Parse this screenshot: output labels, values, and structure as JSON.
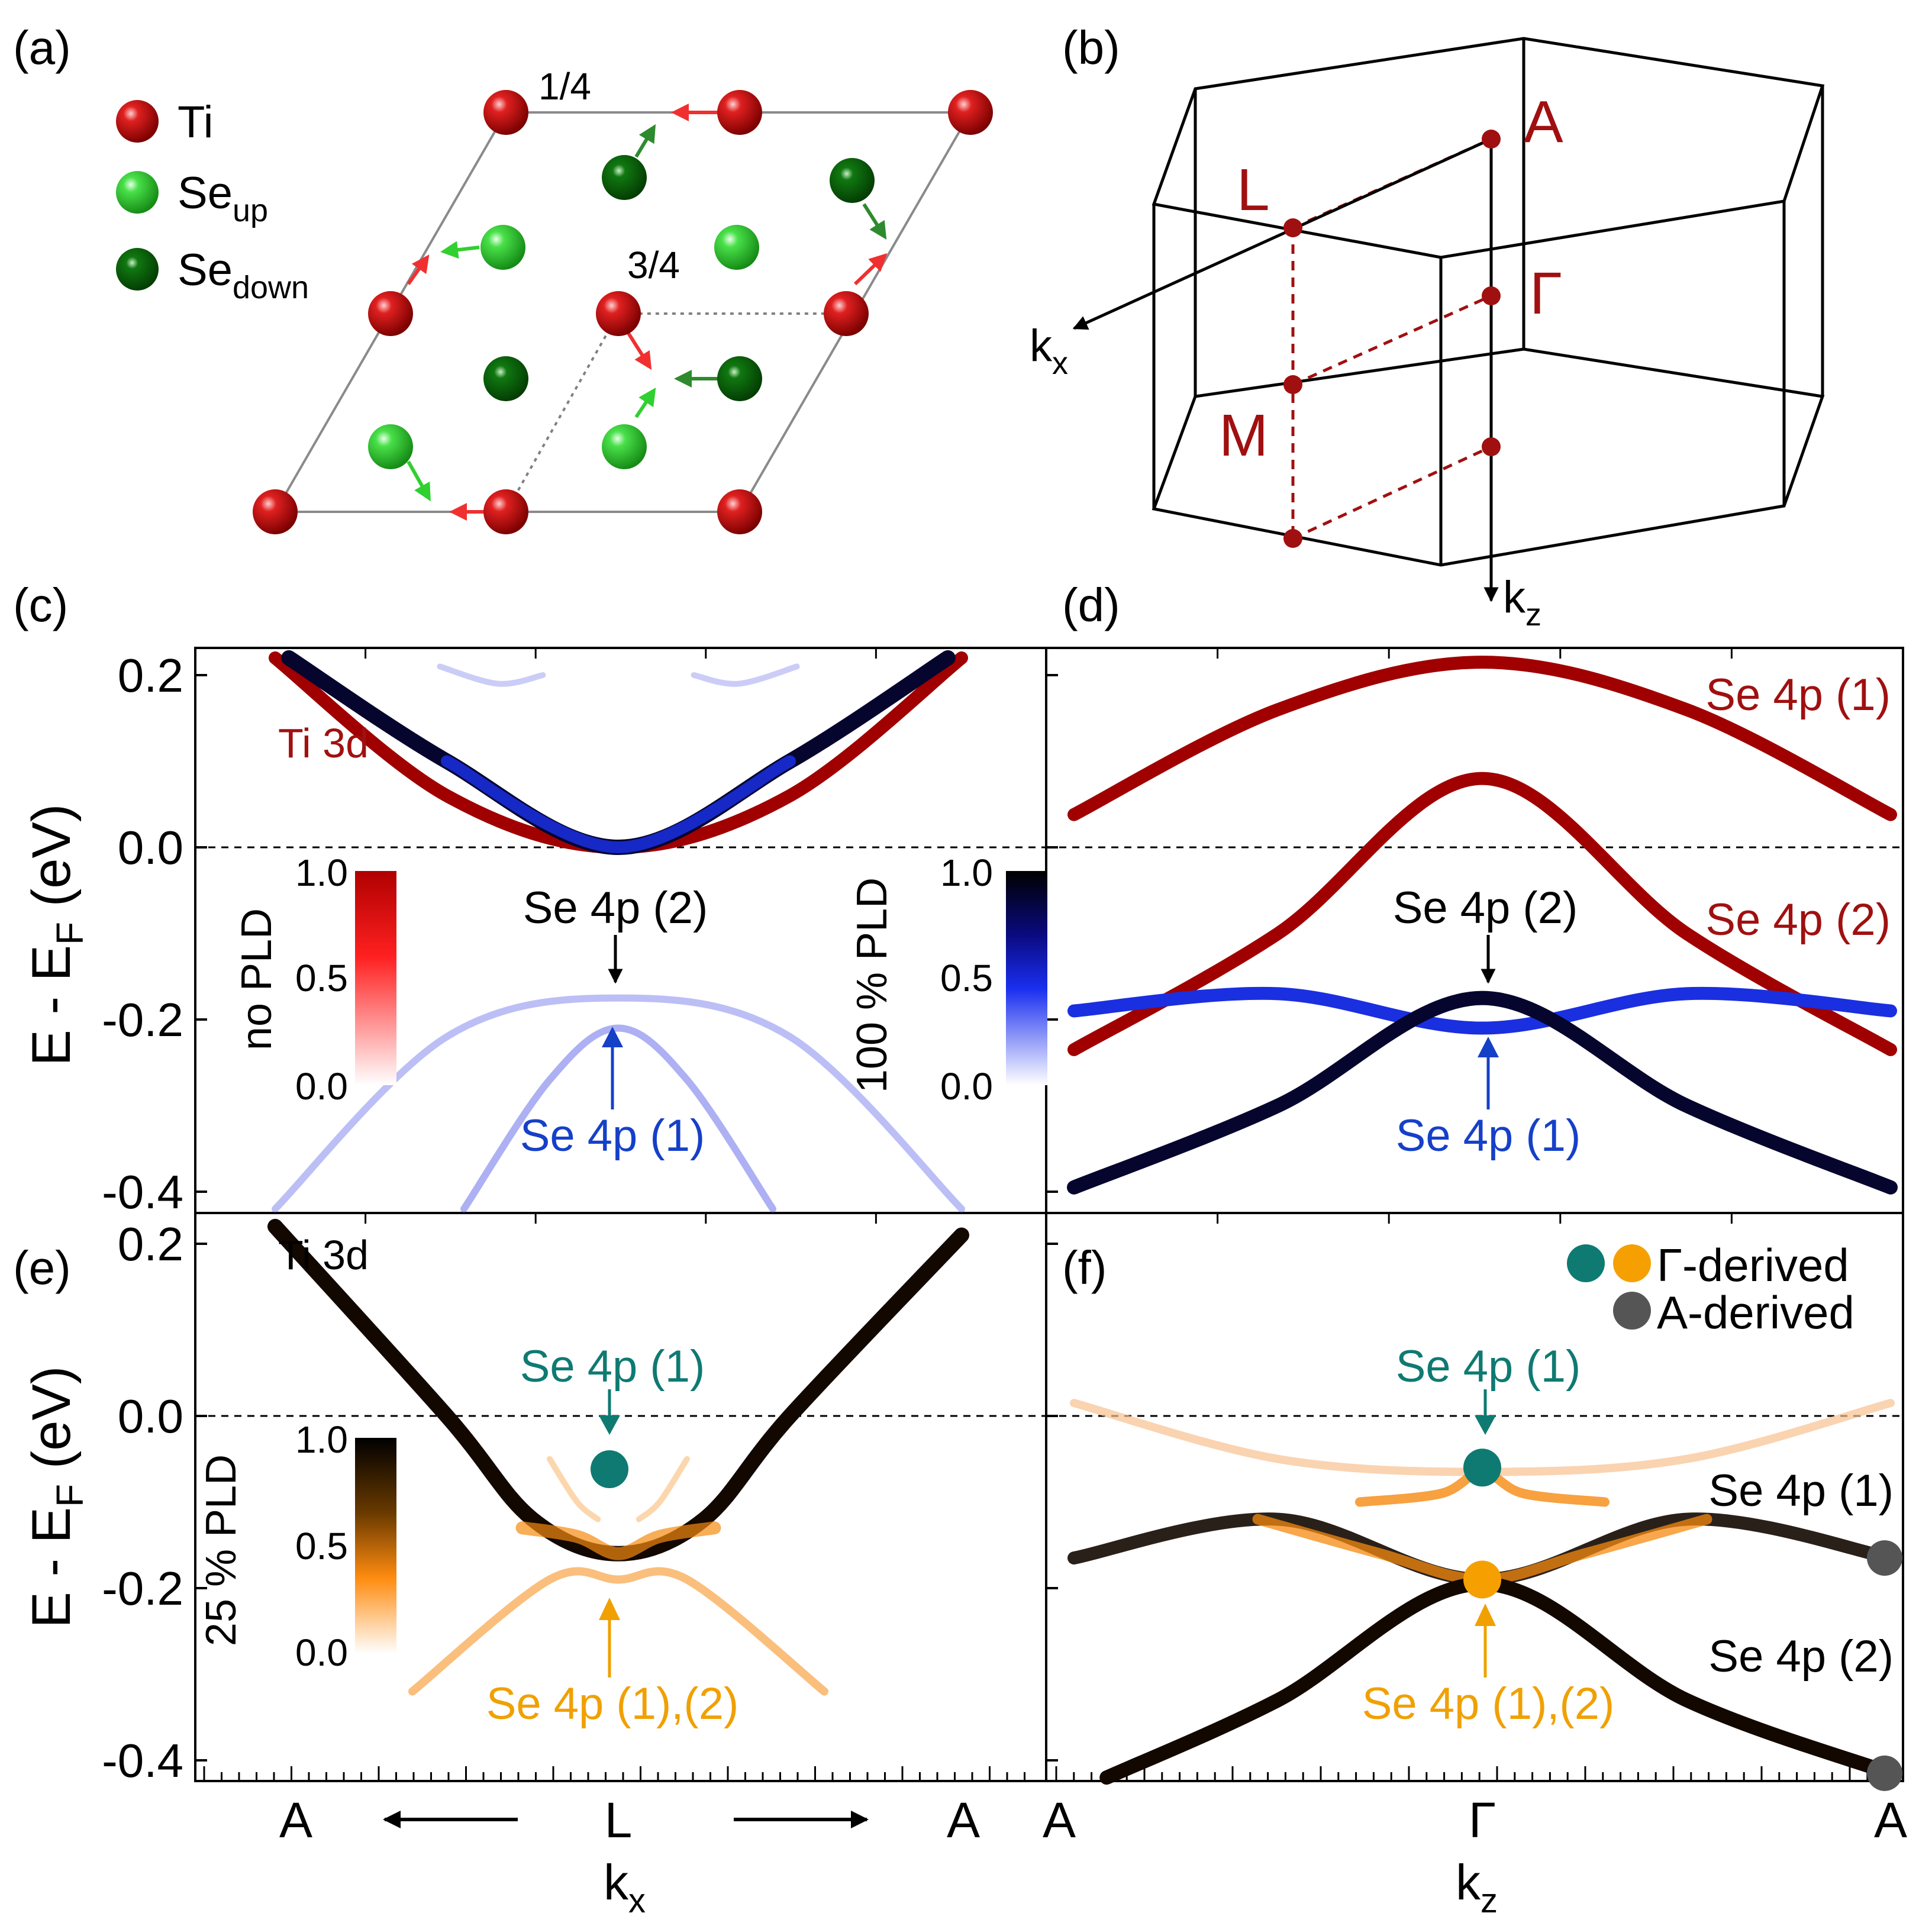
{
  "figure": {
    "panel_labels": [
      "(a)",
      "(b)",
      "(c)",
      "(d)",
      "(e)",
      "(f)"
    ],
    "colors": {
      "ti": "#c00000",
      "se_up": "#3fdc3f",
      "se_down": "#0a6a0a",
      "no_pld": "#a00000",
      "full_pld_dark": "#05052e",
      "full_pld_blue": "#1a2fe0",
      "pld25_dark": "#120800",
      "pld25_orange": "#f58a10",
      "teal": "#0f7a72",
      "gray": "#555555",
      "label_red": "#a01010",
      "label_blue": "#1540c8",
      "label_orange": "#f0a000"
    }
  },
  "panel_a": {
    "legend": [
      {
        "label": "Ti",
        "sub": ""
      },
      {
        "label": "Se",
        "sub": "up"
      },
      {
        "label": "Se",
        "sub": "down"
      }
    ],
    "layer_labels": [
      "1/4",
      "3/4"
    ]
  },
  "panel_b": {
    "points": [
      "A",
      "L",
      "Γ",
      "M"
    ],
    "axis_x": "k",
    "axis_x_sub": "x",
    "axis_z": "k",
    "axis_z_sub": "z"
  },
  "axes": {
    "ylabel_main": "E - E",
    "ylabel_sub": "F",
    "ylabel_tail": " (eV)",
    "yticks": [
      "0.2",
      "0.0",
      "-0.2",
      "-0.4"
    ],
    "kx_ticks": [
      "A",
      "L",
      "A"
    ],
    "kx_label": "k",
    "kx_sub": "x",
    "kz_ticks": [
      "A",
      "Γ",
      "A"
    ],
    "kz_label": "k",
    "kz_sub": "z"
  },
  "panel_c": {
    "band_label_ti": "Ti 3d",
    "label_se2": "Se 4p (2)",
    "label_se1": "Se 4p (1)",
    "colorbar_no_pld": {
      "title": "no PLD",
      "ticks": [
        "1.0",
        "0.5",
        "0.0"
      ]
    },
    "colorbar_full_pld": {
      "title": "100 % PLD",
      "ticks": [
        "1.0",
        "0.5",
        "0.0"
      ]
    }
  },
  "panel_d": {
    "labels": [
      "Se 4p (1)",
      "Se 4p (2)"
    ],
    "label_se2_black": "Se 4p (2)",
    "label_se1_blue": "Se 4p (1)"
  },
  "panel_e": {
    "band_label_ti": "Ti 3d",
    "label_se1_teal": "Se 4p (1)",
    "label_se12_orange": "Se 4p (1),(2)",
    "colorbar_25": {
      "title": "25 % PLD",
      "ticks": [
        "1.0",
        "0.5",
        "0.0"
      ]
    }
  },
  "panel_f": {
    "legend_gamma": "Γ-derived",
    "legend_a": "A-derived",
    "label_se1_teal": "Se 4p (1)",
    "label_se12_orange": "Se 4p (1),(2)",
    "right_labels": [
      "Se 4p (1)",
      "Se 4p (2)"
    ]
  },
  "chart_data": [
    {
      "panel": "c",
      "type": "line",
      "x_path": "A-L-A (kx)",
      "xlabel": "kx",
      "ylabel": "E - EF (eV)",
      "ylim": [
        -0.43,
        0.23
      ],
      "series": [
        {
          "name": "Ti 3d (no PLD)",
          "x": [
            -1.0,
            -0.5,
            0.0,
            0.5,
            1.0
          ],
          "y": [
            0.22,
            0.06,
            0.0,
            0.06,
            0.22
          ]
        },
        {
          "name": "Ti 3d (100% PLD)",
          "x": [
            -0.96,
            -0.5,
            0.0,
            0.5,
            0.96
          ],
          "y": [
            0.22,
            0.1,
            0.0,
            0.1,
            0.22
          ]
        },
        {
          "name": "Se 4p (2) folded",
          "x": [
            -1.0,
            -0.5,
            0.0,
            0.5,
            1.0
          ],
          "y": [
            -0.42,
            -0.22,
            -0.175,
            -0.22,
            -0.42
          ]
        },
        {
          "name": "Se 4p (1) folded",
          "x": [
            -0.45,
            -0.2,
            0.0,
            0.2,
            0.45
          ],
          "y": [
            -0.42,
            -0.27,
            -0.21,
            -0.27,
            -0.42
          ]
        }
      ]
    },
    {
      "panel": "d",
      "type": "line",
      "x_path": "A-Γ-A (kz)",
      "xlabel": "kz",
      "ylabel": "E - EF (eV)",
      "ylim": [
        -0.43,
        0.23
      ],
      "series": [
        {
          "name": "Se 4p (1) no PLD",
          "x": [
            -1.0,
            -0.5,
            0.0,
            0.5,
            1.0
          ],
          "y": [
            0.038,
            0.16,
            0.215,
            0.16,
            0.038
          ]
        },
        {
          "name": "Se 4p (2) no PLD",
          "x": [
            -1.0,
            -0.5,
            0.0,
            0.5,
            1.0
          ],
          "y": [
            -0.235,
            -0.1,
            0.08,
            -0.1,
            -0.235
          ]
        },
        {
          "name": "Se 4p (1) 100% PLD",
          "x": [
            -1.0,
            -0.5,
            0.0,
            0.5,
            1.0
          ],
          "y": [
            -0.19,
            -0.17,
            -0.21,
            -0.17,
            -0.19
          ]
        },
        {
          "name": "Se 4p (2) 100% PLD",
          "x": [
            -1.0,
            -0.5,
            0.0,
            0.5,
            1.0
          ],
          "y": [
            -0.395,
            -0.3,
            -0.175,
            -0.3,
            -0.395
          ]
        }
      ]
    },
    {
      "panel": "e",
      "type": "line",
      "x_path": "A-L-A (kx)",
      "xlabel": "kx",
      "ylabel": "E - EF (eV)",
      "ylim": [
        -0.43,
        0.23
      ],
      "series": [
        {
          "name": "Ti 3d (25% PLD)",
          "x": [
            -1.0,
            -0.5,
            -0.25,
            0.0,
            0.25,
            0.5,
            1.0
          ],
          "y": [
            0.22,
            0.0,
            -0.12,
            -0.16,
            -0.12,
            0.0,
            0.21
          ]
        },
        {
          "name": "Se 4p (1),(2) (25% PLD)",
          "x": [
            -0.6,
            -0.2,
            0.0,
            0.2,
            0.6
          ],
          "y": [
            -0.32,
            -0.19,
            -0.19,
            -0.19,
            -0.32
          ]
        }
      ],
      "markers": [
        {
          "name": "Γ-derived Se 4p (1)",
          "x": 0.0,
          "y": -0.062
        }
      ]
    },
    {
      "panel": "f",
      "type": "line",
      "x_path": "A-Γ-A (kz)",
      "xlabel": "kz",
      "ylabel": "E - EF (eV)",
      "ylim": [
        -0.43,
        0.23
      ],
      "series": [
        {
          "name": "Se 4p (1) upper",
          "x": [
            -1.0,
            -0.5,
            0.0,
            0.5,
            1.0
          ],
          "y": [
            0.015,
            -0.05,
            -0.065,
            -0.05,
            0.015
          ]
        },
        {
          "name": "Se 4p (1)",
          "x": [
            -1.0,
            -0.5,
            0.0,
            0.5,
            1.0
          ],
          "y": [
            -0.165,
            -0.12,
            -0.19,
            -0.12,
            -0.165
          ]
        },
        {
          "name": "Se 4p (2)",
          "x": [
            -0.92,
            -0.5,
            0.0,
            0.5,
            1.0
          ],
          "y": [
            -0.42,
            -0.33,
            -0.195,
            -0.33,
            -0.415
          ]
        }
      ],
      "markers": [
        {
          "name": "Γ-derived Se 4p (1)",
          "x": 0.0,
          "y": -0.06
        },
        {
          "name": "Γ-derived Se 4p (1),(2)",
          "x": 0.0,
          "y": -0.19
        },
        {
          "name": "A-derived Se 4p (1)",
          "x": 1.0,
          "y": -0.165
        },
        {
          "name": "A-derived Se 4p (2)",
          "x": 1.0,
          "y": -0.415
        }
      ]
    }
  ]
}
